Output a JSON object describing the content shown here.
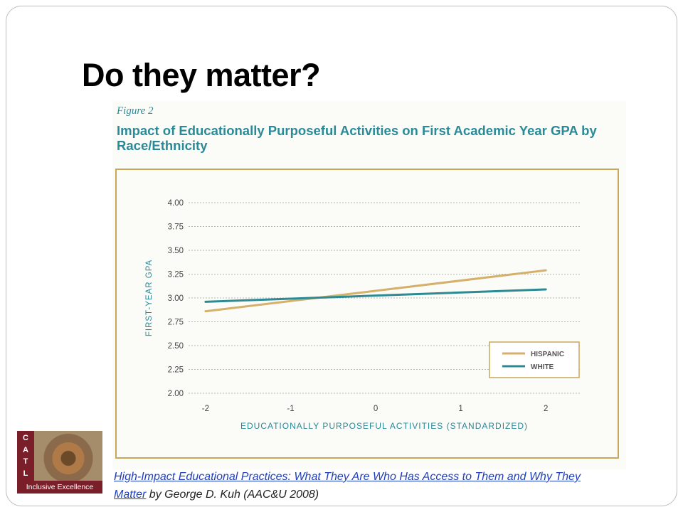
{
  "slide": {
    "title": "Do they matter?"
  },
  "figure": {
    "label": "Figure 2",
    "heading": "Impact of Educationally Purposeful Activities on First Academic Year GPA by Race/Ethnicity"
  },
  "colors": {
    "heading": "#2a8a97",
    "frame": "#c9a75a",
    "hispanic": "#d4b06a",
    "white": "#2c8a92",
    "grid": "#b5b5b5",
    "link": "#1f3fbf"
  },
  "chart_data": {
    "type": "line",
    "xlabel": "Educationally Purposeful Activities (standardized)",
    "ylabel": "First-year GPA",
    "x_ticks": [
      "-2",
      "-1",
      "0",
      "1",
      "2"
    ],
    "y_ticks": [
      "4.00",
      "3.75",
      "3.50",
      "3.25",
      "3.00",
      "2.75",
      "2.50",
      "2.25",
      "2.00"
    ],
    "xlim": [
      -2.2,
      2.4
    ],
    "ylim": [
      2.0,
      4.0
    ],
    "grid": true,
    "legend_position": "bottom-right",
    "series": [
      {
        "name": "HISPANIC",
        "color": "#d4b06a",
        "x": [
          -2,
          2
        ],
        "y": [
          2.86,
          3.29
        ]
      },
      {
        "name": "WHITE",
        "color": "#2c8a92",
        "x": [
          -2,
          2
        ],
        "y": [
          2.96,
          3.09
        ]
      }
    ]
  },
  "citation": {
    "link_text": "High-Impact Educational Practices: What They Are Who Has Access to Them and Why They Matter",
    "rest": " by George D. Kuh (AAC&U 2008)"
  },
  "logo": {
    "letters": [
      "C",
      "A",
      "T",
      "L"
    ],
    "banner": "Inclusive Excellence"
  }
}
